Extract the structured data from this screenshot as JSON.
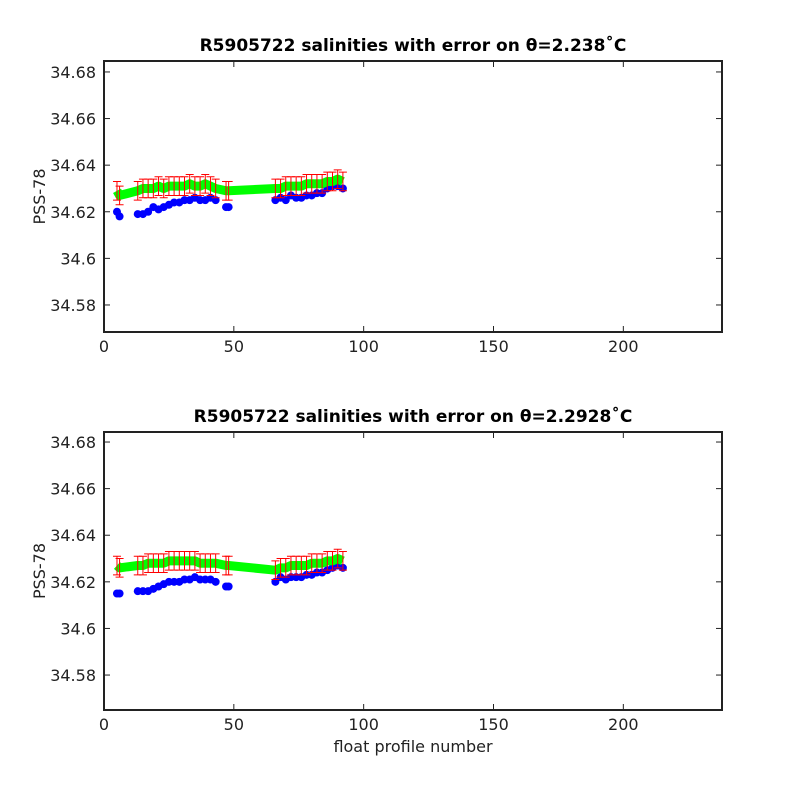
{
  "chart_data": [
    {
      "type": "scatter",
      "title": "R5905722 salinities with error on θ=2.238˚C",
      "ylabel": "PSS-78",
      "xlim": [
        0,
        238
      ],
      "xticks": [
        0,
        50,
        100,
        150,
        200
      ],
      "ylim": [
        34.5684,
        34.6847
      ],
      "yticks": [
        34.58,
        34.6,
        34.62,
        34.64,
        34.66,
        34.68
      ],
      "x": [
        5,
        6,
        13,
        15,
        17,
        19,
        21,
        23,
        25,
        27,
        29,
        31,
        33,
        35,
        37,
        39,
        41,
        43,
        47,
        48,
        66,
        68,
        70,
        72,
        74,
        76,
        78,
        80,
        82,
        84,
        86,
        88,
        90,
        92
      ],
      "series": [
        {
          "color": "#0000ff",
          "values": [
            34.62,
            34.618,
            34.619,
            34.619,
            34.62,
            34.622,
            34.621,
            34.622,
            34.623,
            34.624,
            34.624,
            34.625,
            34.625,
            34.626,
            34.625,
            34.625,
            34.626,
            34.625,
            34.622,
            34.622,
            34.625,
            34.626,
            34.625,
            34.627,
            34.626,
            34.626,
            34.627,
            34.627,
            34.628,
            34.628,
            34.63,
            34.631,
            34.631,
            34.63
          ]
        },
        {
          "color": "#00ff00",
          "error_color": "#ff0000",
          "values": [
            34.629,
            34.627,
            34.629,
            34.63,
            34.63,
            34.63,
            34.631,
            34.63,
            34.631,
            34.631,
            34.631,
            34.631,
            34.632,
            34.631,
            34.631,
            34.632,
            34.631,
            34.63,
            34.629,
            34.629,
            34.63,
            34.63,
            34.631,
            34.631,
            34.631,
            34.631,
            34.632,
            34.632,
            34.632,
            34.632,
            34.633,
            34.633,
            34.634,
            34.633
          ],
          "errors": [
            0.004,
            0.004,
            0.004,
            0.004,
            0.004,
            0.004,
            0.004,
            0.004,
            0.004,
            0.004,
            0.004,
            0.004,
            0.004,
            0.004,
            0.004,
            0.004,
            0.004,
            0.004,
            0.004,
            0.004,
            0.004,
            0.004,
            0.004,
            0.004,
            0.004,
            0.004,
            0.004,
            0.004,
            0.004,
            0.004,
            0.004,
            0.004,
            0.004,
            0.004
          ]
        }
      ]
    },
    {
      "type": "scatter",
      "title": "R5905722 salinities with error on θ=2.2928˚C",
      "ylabel": "PSS-78",
      "xlabel": "float profile number",
      "xlim": [
        0,
        238
      ],
      "xticks": [
        0,
        50,
        100,
        150,
        200
      ],
      "ylim": [
        34.565,
        34.6843
      ],
      "yticks": [
        34.58,
        34.6,
        34.62,
        34.64,
        34.66,
        34.68
      ],
      "x": [
        5,
        6,
        13,
        15,
        17,
        19,
        21,
        23,
        25,
        27,
        29,
        31,
        33,
        35,
        37,
        39,
        41,
        43,
        47,
        48,
        66,
        68,
        70,
        72,
        74,
        76,
        78,
        80,
        82,
        84,
        86,
        88,
        90,
        92
      ],
      "series": [
        {
          "color": "#0000ff",
          "values": [
            34.615,
            34.615,
            34.616,
            34.616,
            34.616,
            34.617,
            34.618,
            34.619,
            34.62,
            34.62,
            34.62,
            34.621,
            34.621,
            34.622,
            34.621,
            34.621,
            34.621,
            34.62,
            34.618,
            34.618,
            34.62,
            34.622,
            34.621,
            34.622,
            34.622,
            34.622,
            34.623,
            34.623,
            34.624,
            34.624,
            34.625,
            34.626,
            34.627,
            34.626
          ]
        },
        {
          "color": "#00ff00",
          "error_color": "#ff0000",
          "values": [
            34.627,
            34.626,
            34.627,
            34.627,
            34.628,
            34.628,
            34.628,
            34.628,
            34.629,
            34.629,
            34.629,
            34.629,
            34.629,
            34.629,
            34.628,
            34.628,
            34.628,
            34.628,
            34.627,
            34.627,
            34.625,
            34.626,
            34.626,
            34.627,
            34.627,
            34.627,
            34.627,
            34.628,
            34.628,
            34.628,
            34.629,
            34.629,
            34.63,
            34.629
          ],
          "errors": [
            0.004,
            0.004,
            0.004,
            0.004,
            0.004,
            0.004,
            0.004,
            0.004,
            0.004,
            0.004,
            0.004,
            0.004,
            0.004,
            0.004,
            0.004,
            0.004,
            0.004,
            0.004,
            0.004,
            0.004,
            0.004,
            0.004,
            0.004,
            0.004,
            0.004,
            0.004,
            0.004,
            0.004,
            0.004,
            0.004,
            0.004,
            0.004,
            0.004,
            0.004
          ]
        }
      ]
    }
  ]
}
